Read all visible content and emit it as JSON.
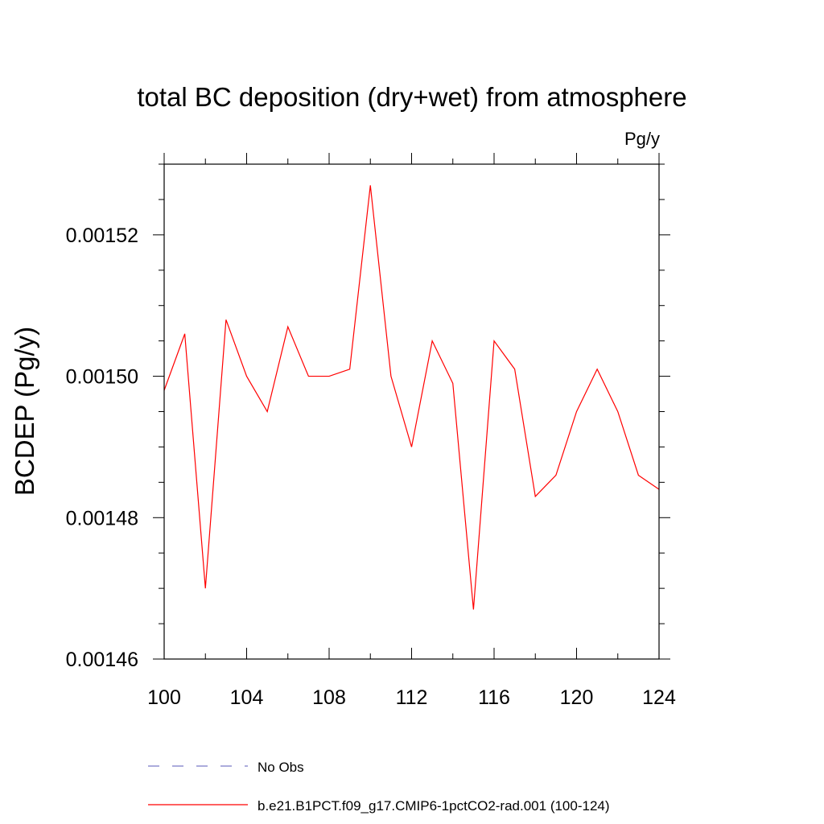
{
  "chart_data": {
    "type": "line",
    "title": "total BC deposition (dry+wet) from atmosphere",
    "units_label": "Pg/y",
    "ylabel": "BCDEP  (Pg/y)",
    "xlabel": "",
    "xlim": [
      100,
      124
    ],
    "ylim": [
      0.00146,
      0.00153
    ],
    "x_ticks": [
      100,
      104,
      108,
      112,
      116,
      120,
      124
    ],
    "x_tick_labels": [
      "100",
      "104",
      "108",
      "112",
      "116",
      "120",
      "124"
    ],
    "y_ticks": [
      0.00146,
      0.00148,
      0.0015,
      0.00152
    ],
    "y_tick_labels": [
      "0.00146",
      "0.00148",
      "0.00150",
      "0.00152"
    ],
    "grid": false,
    "legend_position": "bottom",
    "series": [
      {
        "name": "No Obs",
        "color": "#7b7bc8",
        "style": "dashed",
        "x": [],
        "y": []
      },
      {
        "name": "b.e21.B1PCT.f09_g17.CMIP6-1pctCO2-rad.001 (100-124)",
        "color": "#ff0000",
        "style": "solid",
        "x": [
          100,
          101,
          102,
          103,
          104,
          105,
          106,
          107,
          108,
          109,
          110,
          111,
          112,
          113,
          114,
          115,
          116,
          117,
          118,
          119,
          120,
          121,
          122,
          123,
          124
        ],
        "y": [
          0.001498,
          0.001506,
          0.00147,
          0.001508,
          0.0015,
          0.001495,
          0.001507,
          0.0015,
          0.0015,
          0.001501,
          0.001527,
          0.0015,
          0.00149,
          0.001505,
          0.001499,
          0.001467,
          0.001505,
          0.001501,
          0.001483,
          0.001486,
          0.001495,
          0.001501,
          0.001495,
          0.001486,
          0.001484
        ]
      }
    ]
  }
}
